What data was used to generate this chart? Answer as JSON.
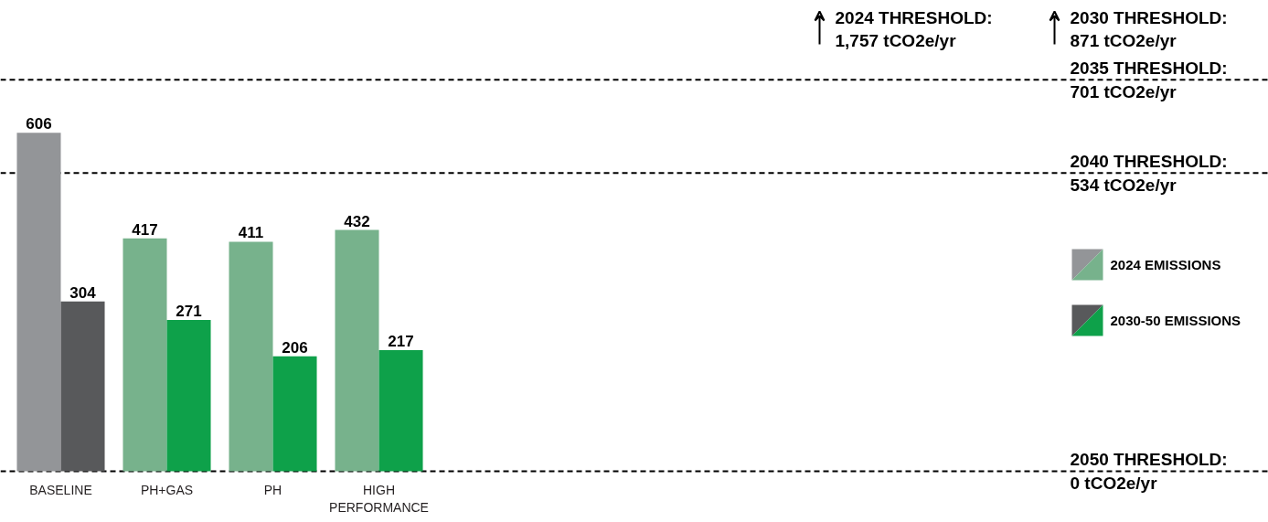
{
  "chart_data": {
    "type": "bar",
    "categories": [
      "BASELINE",
      "PH+GAS",
      "PH",
      "HIGH PERFORMANCE"
    ],
    "series": [
      {
        "name": "2024 EMISSIONS",
        "color": "#77b28c",
        "colors": [
          "#939598",
          "#77b28c",
          "#77b28c",
          "#77b28c"
        ],
        "values": [
          606,
          417,
          411,
          432
        ]
      },
      {
        "name": "2030-50 EMISSIONS",
        "color": "#0ea14a",
        "colors": [
          "#58595b",
          "#0ea14a",
          "#0ea14a",
          "#0ea14a"
        ],
        "values": [
          304,
          271,
          206,
          217
        ]
      }
    ],
    "ylim": [
      0,
      843
    ],
    "data_labels": true,
    "grid": false,
    "legend": "right",
    "ref_lines": [
      {
        "axis": "y",
        "value": 701,
        "label": "2035 THRESHOLD:\n701 tCO2e/yr",
        "color": "#000000",
        "line_style": "dashed"
      },
      {
        "axis": "y",
        "value": 534,
        "label": "2040 THRESHOLD:\n534 tCO2e/yr",
        "color": "#000000",
        "line_style": "dashed"
      },
      {
        "axis": "y",
        "value": 0,
        "label": "2050 THRESHOLD:\n0 tCO2e/yr",
        "color": "#000000",
        "line_style": "dashed"
      }
    ],
    "annotations": [
      "2024 THRESHOLD:\n1,757 tCO2e/yr",
      "2030 THRESHOLD:\n871 tCO2e/yr"
    ]
  }
}
